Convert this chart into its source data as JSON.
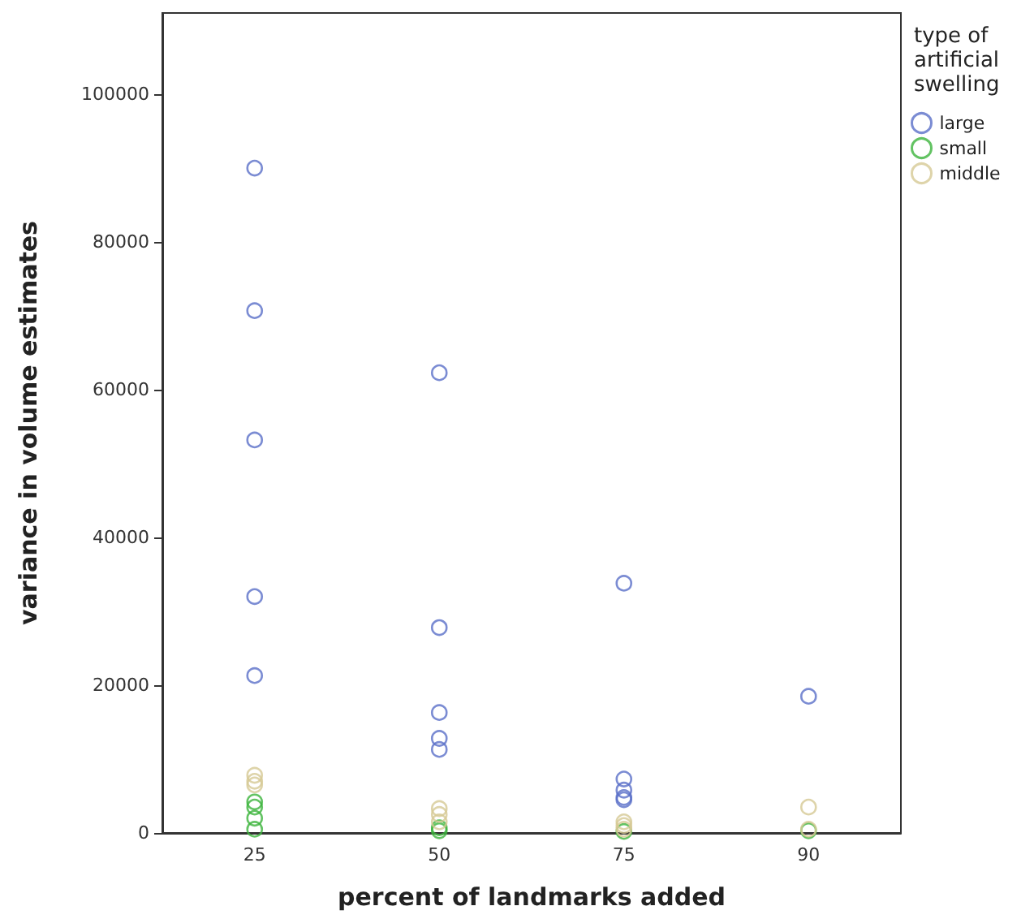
{
  "chart_data": {
    "type": "scatter",
    "xlabel": "percent of landmarks added",
    "ylabel": "variance in volume estimates",
    "legend_title": "type of artificial swelling",
    "categories": [
      "25",
      "50",
      "75",
      "90"
    ],
    "series": [
      {
        "name": "large",
        "color": "#5a6fc8",
        "x": [
          "25",
          "25",
          "25",
          "25",
          "25",
          "50",
          "50",
          "50",
          "50",
          "50",
          "75",
          "75",
          "75",
          "75",
          "75",
          "90"
        ],
        "values": [
          90000,
          70700,
          53200,
          32000,
          21300,
          62300,
          27800,
          16300,
          12800,
          11300,
          33800,
          7300,
          5800,
          4800,
          4500,
          18500
        ]
      },
      {
        "name": "small",
        "color": "#3cb43c",
        "x": [
          "25",
          "25",
          "25",
          "25",
          "50",
          "50",
          "75",
          "90"
        ],
        "values": [
          4200,
          3500,
          2000,
          500,
          700,
          300,
          200,
          300
        ]
      },
      {
        "name": "middle",
        "color": "#d6c995",
        "x": [
          "25",
          "25",
          "25",
          "50",
          "50",
          "50",
          "75",
          "75",
          "75",
          "90",
          "90"
        ],
        "values": [
          7800,
          7000,
          6500,
          3300,
          2500,
          1500,
          1500,
          1000,
          500,
          3500,
          500
        ]
      }
    ],
    "ylim": [
      0,
      111000
    ],
    "yticks": [
      0,
      20000,
      40000,
      60000,
      80000,
      100000
    ],
    "grid": false,
    "legend": "top right",
    "marker": "circle"
  }
}
